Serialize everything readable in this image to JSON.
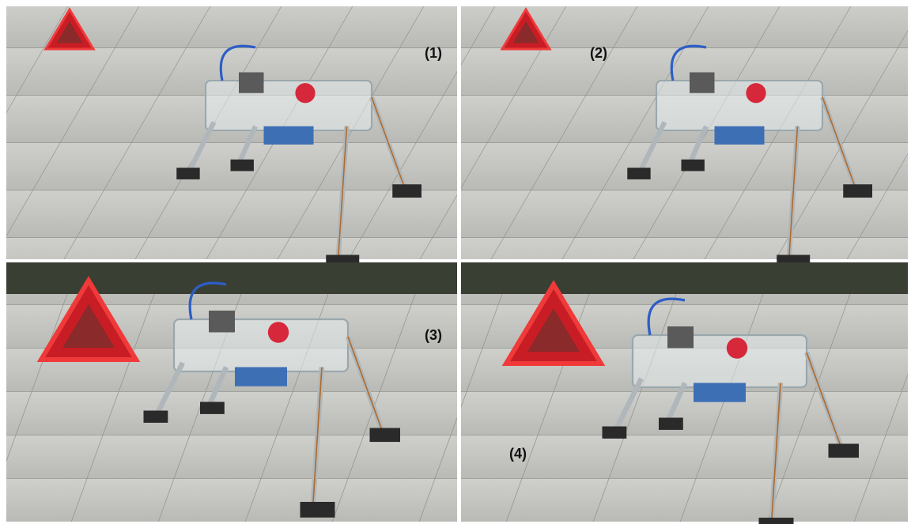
{
  "panels": [
    {
      "label": "(1)"
    },
    {
      "label": "(2)"
    },
    {
      "label": "(3)"
    },
    {
      "label": "(4)"
    }
  ]
}
